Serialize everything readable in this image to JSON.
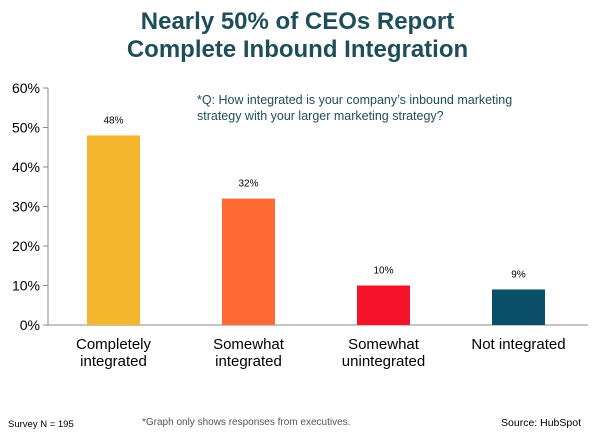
{
  "title": {
    "line1": "Nearly 50% of CEOs Report",
    "line2": "Complete Inbound Integration"
  },
  "question": {
    "line1": "*Q: How integrated is your company’s inbound marketing",
    "line2": "strategy with your larger marketing strategy?"
  },
  "footer": {
    "survey": "Survey N = 195",
    "note": "*Graph only shows responses from executives.",
    "source": "Source: HubSpot"
  },
  "colors": {
    "title": "#1e4e5a",
    "bars": [
      "#f4b62f",
      "#ff6a33",
      "#f5132a",
      "#0b4e68"
    ]
  },
  "chart_data": {
    "type": "bar",
    "categories": [
      [
        "Completely",
        "integrated"
      ],
      [
        "Somewhat",
        "integrated"
      ],
      [
        "Somewhat",
        "unintegrated"
      ],
      [
        "Not integrated"
      ]
    ],
    "values": [
      48,
      32,
      10,
      9
    ],
    "value_labels": [
      "48%",
      "32%",
      "10%",
      "9%"
    ],
    "ylim": [
      0,
      60
    ],
    "yticks": [
      0,
      10,
      20,
      30,
      40,
      50,
      60
    ],
    "ytick_labels": [
      "0%",
      "10%",
      "20%",
      "30%",
      "40%",
      "50%",
      "60%"
    ],
    "grid": false,
    "legend": "none"
  }
}
